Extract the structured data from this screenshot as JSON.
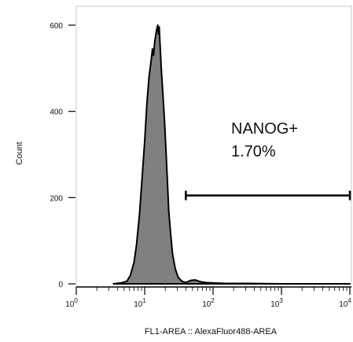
{
  "chart_data": {
    "type": "area",
    "title": "",
    "xlabel": "FL1-AREA :: AlexaFluor488-AREA",
    "ylabel": "Count",
    "x_scale": "log",
    "xlim": [
      1,
      10000
    ],
    "ylim": [
      0,
      650
    ],
    "x_ticks": [
      {
        "value": 1,
        "base": "10",
        "exp": "0"
      },
      {
        "value": 10,
        "base": "10",
        "exp": "1"
      },
      {
        "value": 100,
        "base": "10",
        "exp": "2"
      },
      {
        "value": 1000,
        "base": "10",
        "exp": "3"
      },
      {
        "value": 10000,
        "base": "10",
        "exp": "4"
      }
    ],
    "y_ticks": [
      {
        "value": 0,
        "label": "0"
      },
      {
        "value": 200,
        "label": "200"
      },
      {
        "value": 400,
        "label": "400"
      },
      {
        "value": 600,
        "label": "600"
      }
    ],
    "histogram": {
      "name": "",
      "fill_color": "#808080",
      "line_color": "#000000",
      "points": [
        [
          3.5,
          0
        ],
        [
          4.5,
          2
        ],
        [
          5.5,
          6
        ],
        [
          6.2,
          20
        ],
        [
          7.0,
          50
        ],
        [
          7.6,
          90
        ],
        [
          8.4,
          160
        ],
        [
          9.3,
          260
        ],
        [
          10.0,
          330
        ],
        [
          10.8,
          420
        ],
        [
          11.6,
          480
        ],
        [
          12.5,
          520
        ],
        [
          13.0,
          545
        ],
        [
          13.5,
          530
        ],
        [
          14.0,
          560
        ],
        [
          14.5,
          575
        ],
        [
          15.0,
          590
        ],
        [
          15.5,
          600
        ],
        [
          15.9,
          580
        ],
        [
          16.3,
          596
        ],
        [
          16.8,
          555
        ],
        [
          17.5,
          500
        ],
        [
          18.5,
          440
        ],
        [
          19.5,
          380
        ],
        [
          20.5,
          310
        ],
        [
          21.5,
          240
        ],
        [
          22.5,
          170
        ],
        [
          24.0,
          115
        ],
        [
          25.5,
          70
        ],
        [
          28.0,
          35
        ],
        [
          31.0,
          15
        ],
        [
          35.0,
          6
        ],
        [
          40.0,
          3
        ],
        [
          47.0,
          8
        ],
        [
          55.0,
          9
        ],
        [
          65.0,
          5
        ],
        [
          78.0,
          3
        ],
        [
          100.0,
          2
        ],
        [
          150.0,
          1
        ],
        [
          300.0,
          1
        ],
        [
          1000.0,
          0
        ],
        [
          10000.0,
          0
        ]
      ]
    },
    "gate": {
      "name": "NANOG+",
      "percent": "1.70%",
      "x_start": 40,
      "x_end": 10000,
      "y": 205
    }
  }
}
